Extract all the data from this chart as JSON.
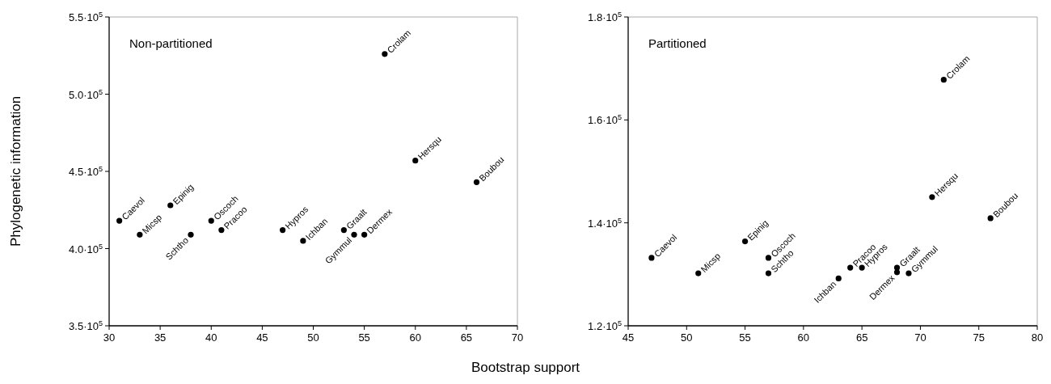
{
  "chart_data": [
    {
      "type": "scatter",
      "title": "Non-partitioned",
      "ylabel": "Phylogenetic information",
      "xlabel": "Bootstrap support",
      "xlim": [
        30,
        70
      ],
      "xticks": [
        30,
        35,
        40,
        45,
        50,
        55,
        60,
        65,
        70
      ],
      "ylim": [
        350000,
        550000
      ],
      "yticks": [
        {
          "value": 350000,
          "label": "3.5·10$^{5}$"
        },
        {
          "value": 400000,
          "label": "4.0·10$^{5}$"
        },
        {
          "value": 450000,
          "label": "4.5·10$^{5}$"
        },
        {
          "value": 500000,
          "label": "5.0·10$^{5}$"
        },
        {
          "value": 550000,
          "label": "5.5·10$^{5}$"
        }
      ],
      "grid": false,
      "marker": "circle",
      "series": [
        {
          "color": "#000000",
          "x": [
            31,
            33,
            36,
            38,
            40,
            41,
            47,
            49,
            53,
            54,
            55,
            57,
            60,
            66
          ],
          "values": [
            418000,
            409000,
            428000,
            409000,
            418000,
            412000,
            412000,
            405000,
            412000,
            409000,
            409000,
            526000,
            457000,
            443000
          ]
        }
      ],
      "annotations": [
        {
          "text": "Caevol",
          "x": 31,
          "y": 418000
        },
        {
          "text": "Micsp",
          "x": 33,
          "y": 409000
        },
        {
          "text": "Epinig",
          "x": 36,
          "y": 428000
        },
        {
          "text": "Schtho",
          "x": 38,
          "y": 409000
        },
        {
          "text": "Oscoch",
          "x": 40,
          "y": 418000
        },
        {
          "text": "Pracoo",
          "x": 41,
          "y": 412000
        },
        {
          "text": "Hypros",
          "x": 47,
          "y": 412000
        },
        {
          "text": "Ichban",
          "x": 49,
          "y": 405000
        },
        {
          "text": "Graalt",
          "x": 53,
          "y": 412000
        },
        {
          "text": "Gymmul",
          "x": 54,
          "y": 409000
        },
        {
          "text": "Dermex",
          "x": 55,
          "y": 409000
        },
        {
          "text": "Crolam",
          "x": 57,
          "y": 526000
        },
        {
          "text": "Hersqu",
          "x": 60,
          "y": 457000
        },
        {
          "text": "Boubou",
          "x": 66,
          "y": 443000
        }
      ]
    },
    {
      "type": "scatter",
      "title": "Partitioned",
      "xlim": [
        45,
        80
      ],
      "xticks": [
        45,
        50,
        55,
        60,
        65,
        70,
        75,
        80
      ],
      "ylim": [
        120000,
        180000
      ],
      "yticks": [
        {
          "value": 120000,
          "label": "1.2·10$^{5}$"
        },
        {
          "value": 140000,
          "label": "1.4·10$^{5}$"
        },
        {
          "value": 160000,
          "label": "1.6·10$^{5}$"
        },
        {
          "value": 180000,
          "label": "1.8·10$^{5}$"
        }
      ],
      "grid": false,
      "marker": "circle",
      "series": [
        {
          "color": "#000000",
          "x": [
            47,
            51,
            55,
            57,
            57,
            63,
            64,
            65,
            68,
            68,
            69,
            72,
            71,
            76
          ],
          "values": [
            133200,
            130200,
            136400,
            133200,
            130200,
            129200,
            131300,
            131300,
            131300,
            130400,
            130200,
            167800,
            145000,
            140900
          ]
        }
      ],
      "annotations": [
        {
          "text": "Caevol",
          "x": 47,
          "y": 133200
        },
        {
          "text": "Micsp",
          "x": 51,
          "y": 130200
        },
        {
          "text": "Epinig",
          "x": 55,
          "y": 136400
        },
        {
          "text": "Oscoch",
          "x": 57,
          "y": 133200
        },
        {
          "text": "Schtho",
          "x": 57,
          "y": 130200
        },
        {
          "text": "Ichban",
          "x": 63,
          "y": 129200
        },
        {
          "text": "Pracoo",
          "x": 64,
          "y": 131300
        },
        {
          "text": "Hypros",
          "x": 65,
          "y": 131300
        },
        {
          "text": "Graalt",
          "x": 68,
          "y": 131300
        },
        {
          "text": "Dermex",
          "x": 68,
          "y": 130400
        },
        {
          "text": "Gymmul",
          "x": 69,
          "y": 130200
        },
        {
          "text": "Crolam",
          "x": 72,
          "y": 167800
        },
        {
          "text": "Hersqu",
          "x": 71,
          "y": 145000
        },
        {
          "text": "Boubou",
          "x": 76,
          "y": 140900
        }
      ]
    }
  ]
}
